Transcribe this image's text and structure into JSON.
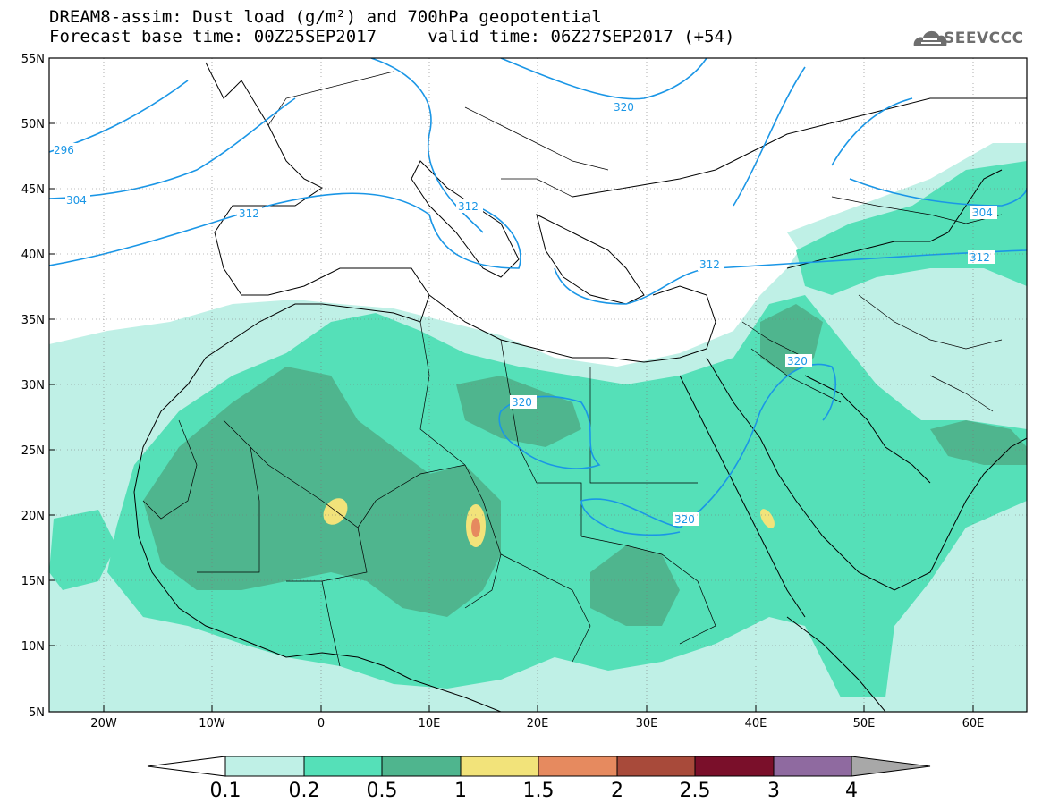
{
  "title_line1": "DREAM8-assim: Dust load (g/m²) and 700hPa geopotential",
  "title_line2": "Forecast base time: 00Z25SEP2017     valid time: 06Z27SEP2017 (+54)",
  "logo_text": "SEEVCCC",
  "lat_labels": [
    "55N",
    "50N",
    "45N",
    "40N",
    "35N",
    "30N",
    "25N",
    "20N",
    "15N",
    "10N",
    "5N"
  ],
  "lon_labels": [
    "20W",
    "10W",
    "0",
    "10E",
    "20E",
    "30E",
    "40E",
    "50E",
    "60E"
  ],
  "contour_labels": [
    "296",
    "304",
    "312",
    "312",
    "320",
    "320",
    "320",
    "304",
    "312",
    "312"
  ],
  "colorbar": {
    "labels": [
      "0.1",
      "0.2",
      "0.5",
      "1",
      "1.5",
      "2",
      "2.5",
      "3",
      "4"
    ],
    "colors": [
      "#ffffff",
      "#bff0e6",
      "#55e0b8",
      "#4fb58e",
      "#f2e37a",
      "#e68a5f",
      "#a84a3a",
      "#7a0f2a",
      "#8f6aa0",
      "#a8a8a8"
    ]
  },
  "colors": {
    "contour": "#1a96e6",
    "dust_01": "#bff0e6",
    "dust_02": "#55e0b8",
    "dust_05": "#4fb58e",
    "dust_1": "#f2e37a",
    "dust_15": "#e68a5f"
  }
}
